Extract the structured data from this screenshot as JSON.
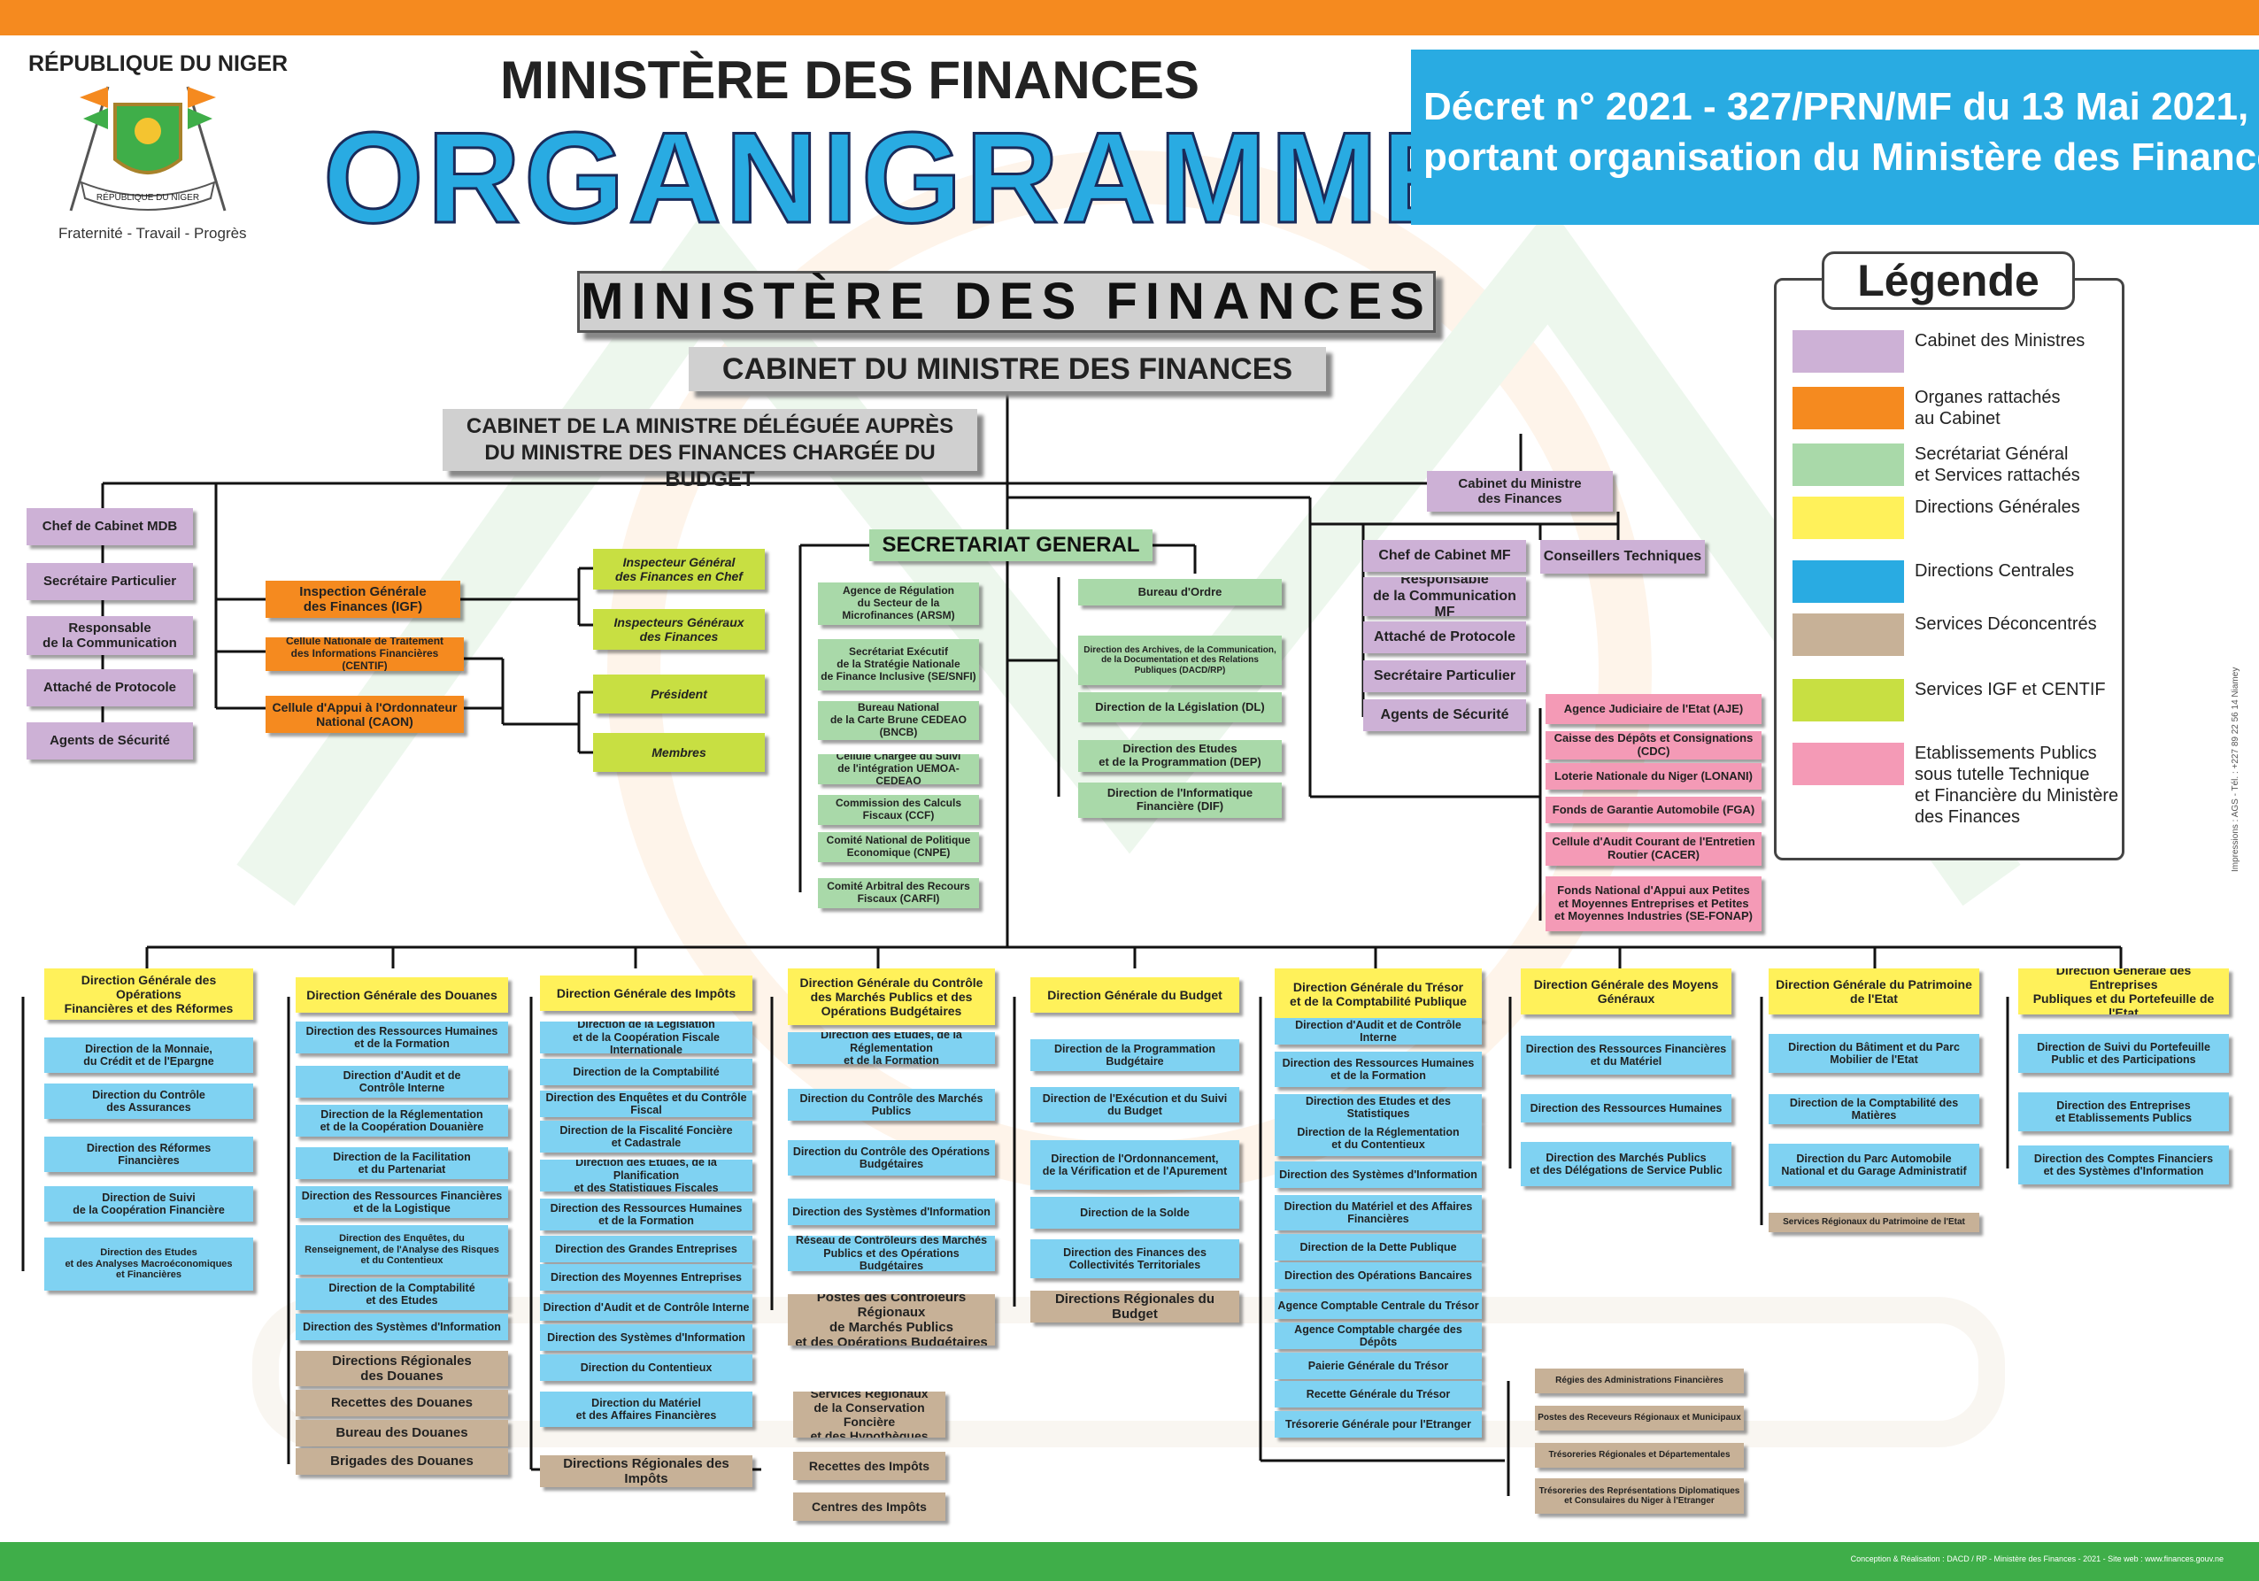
{
  "header": {
    "republic": "RÉPUBLIQUE DU NIGER",
    "motto": "Fraternité - Travail - Progrès",
    "emblem_text": "RÉPUBLIQUE DU NIGER",
    "ministry_title": "MINISTÈRE DES FINANCES",
    "main_title": "ORGANIGRAMME",
    "decree_line1": "Décret n° 2021 - 327/PRN/MF du 13 Mai 2021,",
    "decree_line2": "portant organisation du Ministère des Finances."
  },
  "top": {
    "ministry": "MINISTÈRE DES FINANCES",
    "cabinet": "CABINET DU MINISTRE DES FINANCES",
    "delegate": "CABINET DE LA MINISTRE DÉLÉGUÉE AUPRÈS\nDU MINISTRE DES FINANCES CHARGÉE DU BUDGET",
    "secretariat": "SECRETARIAT GENERAL"
  },
  "legend": {
    "title": "Légende",
    "items": [
      {
        "label": "Cabinet des Ministres",
        "color": "#cdb1d6"
      },
      {
        "label": "Organes rattachés\nau Cabinet",
        "color": "#f58a1f"
      },
      {
        "label": "Secrétariat Général\net Services rattachés",
        "color": "#a9d9a9"
      },
      {
        "label": "Directions Générales",
        "color": "#fff15a"
      },
      {
        "label": "Directions Centrales",
        "color": "#29abe2"
      },
      {
        "label": "Services Déconcentrés",
        "color": "#c7b197"
      },
      {
        "label": "Services IGF et CENTIF",
        "color": "#c8df42"
      },
      {
        "label": "Etablissements Publics\nsous tutelle Technique\net Financière du Ministère\ndes Finances",
        "color": "#f49ab6"
      }
    ]
  },
  "side_print": "Impressions : AGS - Tél. : +227 89 22 56 14 Niamey",
  "footer": {
    "credits": "Conception & Réalisation : DACD / RP - Ministère des Finances  - 2021 -  Site web : www.finances.gouv.ne"
  },
  "cabinet_mdb": [
    "Chef de Cabinet MDB",
    "Secrétaire Particulier",
    "Responsable\nde la Communication",
    "Attaché de Protocole",
    "Agents de Sécurité"
  ],
  "organes": [
    "Inspection Générale\ndes Finances (IGF)",
    "Cellule Nationale de Traitement\ndes Informations Financières (CENTIF)",
    "Cellule d'Appui à l'Ordonnateur\nNational (CAON)"
  ],
  "igf_centif": [
    "Inspecteur Général\ndes Finances en Chef",
    "Inspecteurs Généraux\ndes Finances",
    "Président",
    "Membres"
  ],
  "sg_left": [
    "Agence de Régulation\ndu Secteur de la\nMicrofinances (ARSM)",
    "Secrétariat Exécutif\nde la Stratégie Nationale\nde Finance Inclusive (SE/SNFI)",
    "Bureau National\nde la Carte Brune CEDEAO\n(BNCB)",
    "Cellule Chargée du Suivi\nde l'intégration UEMOA-CEDEAO",
    "Commission des Calculs\nFiscaux (CCF)",
    "Comité National de Politique\nEconomique (CNPE)",
    "Comité Arbitral des Recours\nFiscaux (CARFI)"
  ],
  "sg_right": [
    "Bureau d'Ordre",
    "Direction des Archives, de la Communication,\nde la Documentation et des Relations\nPubliques (DACD/RP)",
    "Direction de la Législation (DL)",
    "Direction des Etudes\net de la Programmation (DEP)",
    "Direction de l'Informatique\nFinancière (DIF)"
  ],
  "cabinet_mf": {
    "head": "Cabinet du Ministre\ndes Finances",
    "conseillers": "Conseillers Techniques",
    "items": [
      "Chef de Cabinet MF",
      "Responsable\nde la Communication MF",
      "Attaché de Protocole",
      "Secrétaire Particulier",
      "Agents de Sécurité"
    ]
  },
  "etablissements": [
    "Agence Judiciaire de l'Etat (AJE)",
    "Caisse des Dépôts et Consignations (CDC)",
    "Loterie Nationale du Niger (LONANI)",
    "Fonds de Garantie Automobile (FGA)",
    "Cellule d'Audit Courant de l'Entretien\nRoutier (CACER)",
    "Fonds National d'Appui aux Petites\net Moyennes Entreprises et Petites\net Moyennes Industries (SE-FONAP)"
  ],
  "dg": [
    {
      "name": "Direction Générale des Opérations\nFinancières et des Réformes",
      "items": [
        {
          "t": "Direction de la Monnaie,\ndu Crédit et de l'Epargne",
          "c": "blue"
        },
        {
          "t": "Direction du Contrôle\ndes Assurances",
          "c": "blue"
        },
        {
          "t": "Direction des Réformes\nFinancières",
          "c": "blue"
        },
        {
          "t": "Direction de Suivi\nde la Coopération Financière",
          "c": "blue"
        },
        {
          "t": "Direction des Etudes\net des Analyses Macroéconomiques\net Financières",
          "c": "blue"
        }
      ]
    },
    {
      "name": "Direction Générale des Douanes",
      "items": [
        {
          "t": "Direction des Ressources Humaines\net de la Formation",
          "c": "blue"
        },
        {
          "t": "Direction d'Audit et de\nContrôle Interne",
          "c": "blue"
        },
        {
          "t": "Direction de la Réglementation\net de la Coopération Douanière",
          "c": "blue"
        },
        {
          "t": "Direction de la Facilitation\net du Partenariat",
          "c": "blue"
        },
        {
          "t": "Direction des Ressources Financières\net de la Logistique",
          "c": "blue"
        },
        {
          "t": "Direction des Enquêtes, du\nRenseignement, de l'Analyse des Risques\net du Contentieux",
          "c": "blue"
        },
        {
          "t": "Direction de la Comptabilité\net des Etudes",
          "c": "blue"
        },
        {
          "t": "Direction des Systèmes d'Information",
          "c": "blue"
        },
        {
          "t": "Directions Régionales\ndes Douanes",
          "c": "tan"
        },
        {
          "t": "Recettes des Douanes",
          "c": "tan"
        },
        {
          "t": "Bureau des Douanes",
          "c": "tan"
        },
        {
          "t": "Brigades des Douanes",
          "c": "tan"
        }
      ]
    },
    {
      "name": "Direction Générale des Impôts",
      "items": [
        {
          "t": "Direction de la Législation\net de la Coopération Fiscale Internationale",
          "c": "blue"
        },
        {
          "t": "Direction de la Comptabilité",
          "c": "blue"
        },
        {
          "t": "Direction des Enquêtes et du Contrôle Fiscal",
          "c": "blue"
        },
        {
          "t": "Direction de la Fiscalité Foncière\net Cadastrale",
          "c": "blue"
        },
        {
          "t": "Direction des Etudes, de la Planification\net des Statistiques Fiscales",
          "c": "blue"
        },
        {
          "t": "Direction des Ressources Humaines\net de la Formation",
          "c": "blue"
        },
        {
          "t": "Direction des Grandes Entreprises",
          "c": "blue"
        },
        {
          "t": "Direction des Moyennes Entreprises",
          "c": "blue"
        },
        {
          "t": "Direction d'Audit et de Contrôle Interne",
          "c": "blue"
        },
        {
          "t": "Direction des Systèmes d'Information",
          "c": "blue"
        },
        {
          "t": "Direction du Contentieux",
          "c": "blue"
        },
        {
          "t": "Direction du Matériel\net des Affaires Financières",
          "c": "blue"
        },
        {
          "t": "Directions Régionales des Impôts",
          "c": "tan"
        }
      ],
      "subs": [
        {
          "t": "Services Régionaux\nde la Conservation Foncière\net des Hypothèques",
          "c": "tan"
        },
        {
          "t": "Recettes des Impôts",
          "c": "tan"
        },
        {
          "t": "Centres des Impôts",
          "c": "tan"
        }
      ]
    },
    {
      "name": "Direction Générale du Contrôle\ndes Marchés Publics et des\nOpérations  Budgétaires",
      "items": [
        {
          "t": "Direction des Etudes, de la Réglementation\net de la Formation",
          "c": "blue"
        },
        {
          "t": "Direction du Contrôle des Marchés\nPublics",
          "c": "blue"
        },
        {
          "t": "Direction du Contrôle des Opérations\nBudgétaires",
          "c": "blue"
        },
        {
          "t": "Direction des Systèmes d'Information",
          "c": "blue"
        },
        {
          "t": "Réseau de Contrôleurs des Marchés\nPublics et des Opérations Budgétaires",
          "c": "blue"
        },
        {
          "t": "Postes des Contrôleurs Régionaux\nde Marchés Publics\net des Opérations Budgétaires",
          "c": "tan"
        }
      ]
    },
    {
      "name": "Direction Générale du Budget",
      "items": [
        {
          "t": "Direction de la Programmation Budgétaire",
          "c": "blue"
        },
        {
          "t": "Direction de l'Exécution et du Suivi\ndu Budget",
          "c": "blue"
        },
        {
          "t": "Direction de l'Ordonnancement,\nde la Vérification et de l'Apurement",
          "c": "blue"
        },
        {
          "t": "Direction de la Solde",
          "c": "blue"
        },
        {
          "t": "Direction des Finances des\nCollectivités Territoriales",
          "c": "blue"
        },
        {
          "t": "Directions Régionales du Budget",
          "c": "tan"
        }
      ]
    },
    {
      "name": "Direction Générale du Trésor\net de la Comptabilité Publique",
      "items": [
        {
          "t": "Direction d'Audit et de Contrôle Interne",
          "c": "blue"
        },
        {
          "t": "Direction des Ressources Humaines\net de la Formation",
          "c": "blue"
        },
        {
          "t": "Direction des Etudes et des Statistiques",
          "c": "blue"
        },
        {
          "t": "Direction de la Réglementation\net du Contentieux",
          "c": "blue"
        },
        {
          "t": "Direction des Systèmes d'Information",
          "c": "blue"
        },
        {
          "t": "Direction du Matériel et des Affaires\nFinancières",
          "c": "blue"
        },
        {
          "t": "Direction de la Dette Publique",
          "c": "blue"
        },
        {
          "t": "Direction des Opérations Bancaires",
          "c": "blue"
        },
        {
          "t": "Agence Comptable Centrale du Trésor",
          "c": "blue"
        },
        {
          "t": "Agence Comptable chargée des Dépôts",
          "c": "blue"
        },
        {
          "t": "Paierie Générale du Trésor",
          "c": "blue"
        },
        {
          "t": "Recette Générale du Trésor",
          "c": "blue"
        },
        {
          "t": "Trésorerie Générale pour l'Etranger",
          "c": "blue"
        }
      ],
      "subs": [
        {
          "t": "Régies des Administrations Financières",
          "c": "tan"
        },
        {
          "t": "Postes des Receveurs Régionaux et Municipaux",
          "c": "tan"
        },
        {
          "t": "Trésoreries Régionales et Départementales",
          "c": "tan"
        },
        {
          "t": "Trésoreries des Représentations Diplomatiques\net Consulaires du Niger à l'Etranger",
          "c": "tan"
        }
      ]
    },
    {
      "name": "Direction Générale des Moyens\nGénéraux",
      "items": [
        {
          "t": "Direction des Ressources Financières\net du Matériel",
          "c": "blue"
        },
        {
          "t": "Direction des Ressources Humaines",
          "c": "blue"
        },
        {
          "t": "Direction des Marchés Publics\net des Délégations de Service Public",
          "c": "blue"
        }
      ]
    },
    {
      "name": "Direction Générale du Patrimoine\nde l'Etat",
      "items": [
        {
          "t": "Direction du Bâtiment et du Parc\nMobilier de l'Etat",
          "c": "blue"
        },
        {
          "t": "Direction de la Comptabilité des Matières",
          "c": "blue"
        },
        {
          "t": "Direction du Parc Automobile\nNational et du Garage Administratif",
          "c": "blue"
        },
        {
          "t": "Services Régionaux du Patrimoine de l'Etat",
          "c": "tan"
        }
      ]
    },
    {
      "name": "Direction Générale des Entreprises\nPubliques et du Portefeuille de l'Etat",
      "items": [
        {
          "t": "Direction de Suivi du Portefeuille\nPublic et des Participations",
          "c": "blue"
        },
        {
          "t": "Direction des Entreprises\net Etablissements Publics",
          "c": "blue"
        },
        {
          "t": "Direction des Comptes Financiers\net des Systèmes d'Information",
          "c": "blue"
        }
      ]
    }
  ]
}
